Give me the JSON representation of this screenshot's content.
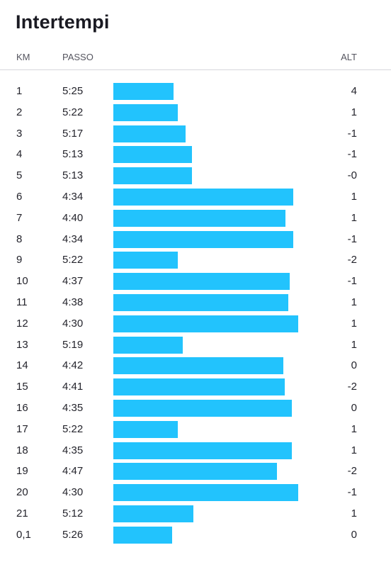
{
  "title": "Intertempi",
  "columns": {
    "km": "KM",
    "pace": "PASSO",
    "alt": "ALT"
  },
  "colors": {
    "bar": "#22c3fd",
    "divider": "#d6d6dc"
  },
  "splits": [
    {
      "km": "1",
      "pace": "5:25",
      "alt": "4"
    },
    {
      "km": "2",
      "pace": "5:22",
      "alt": "1"
    },
    {
      "km": "3",
      "pace": "5:17",
      "alt": "-1"
    },
    {
      "km": "4",
      "pace": "5:13",
      "alt": "-1"
    },
    {
      "km": "5",
      "pace": "5:13",
      "alt": "-0"
    },
    {
      "km": "6",
      "pace": "4:34",
      "alt": "1"
    },
    {
      "km": "7",
      "pace": "4:40",
      "alt": "1"
    },
    {
      "km": "8",
      "pace": "4:34",
      "alt": "-1"
    },
    {
      "km": "9",
      "pace": "5:22",
      "alt": "-2"
    },
    {
      "km": "10",
      "pace": "4:37",
      "alt": "-1"
    },
    {
      "km": "11",
      "pace": "4:38",
      "alt": "1"
    },
    {
      "km": "12",
      "pace": "4:30",
      "alt": "1"
    },
    {
      "km": "13",
      "pace": "5:19",
      "alt": "1"
    },
    {
      "km": "14",
      "pace": "4:42",
      "alt": "0"
    },
    {
      "km": "15",
      "pace": "4:41",
      "alt": "-2"
    },
    {
      "km": "16",
      "pace": "4:35",
      "alt": "0"
    },
    {
      "km": "17",
      "pace": "5:22",
      "alt": "1"
    },
    {
      "km": "18",
      "pace": "4:35",
      "alt": "1"
    },
    {
      "km": "19",
      "pace": "4:47",
      "alt": "-2"
    },
    {
      "km": "20",
      "pace": "4:30",
      "alt": "-1"
    },
    {
      "km": "21",
      "pace": "5:12",
      "alt": "1"
    },
    {
      "km": "0,1",
      "pace": "5:26",
      "alt": "0"
    }
  ]
}
